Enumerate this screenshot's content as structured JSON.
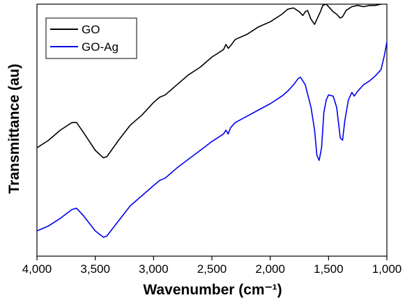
{
  "chart_data": {
    "type": "line",
    "title": "",
    "xlabel": "Wavenumber (cm⁻¹)",
    "ylabel": "Transmittance (au)",
    "xlim": [
      4000,
      1000
    ],
    "x_reversed": true,
    "y_ticks_shown": false,
    "x_ticks": [
      4000,
      3500,
      3000,
      2500,
      2000,
      1500,
      1000
    ],
    "x_tick_labels": [
      "4,000",
      "3,500",
      "3,000",
      "2,500",
      "2,000",
      "1,500",
      "1,000"
    ],
    "ylim": [
      0,
      100
    ],
    "grid": false,
    "legend_position": "top-left",
    "series": [
      {
        "name": "GO",
        "color": "#000000",
        "points": [
          [
            4000,
            43
          ],
          [
            3900,
            46
          ],
          [
            3800,
            50
          ],
          [
            3700,
            53
          ],
          [
            3660,
            53
          ],
          [
            3600,
            49
          ],
          [
            3500,
            42
          ],
          [
            3430,
            39
          ],
          [
            3400,
            39.5
          ],
          [
            3300,
            46
          ],
          [
            3200,
            52
          ],
          [
            3100,
            56
          ],
          [
            3000,
            61
          ],
          [
            2950,
            63
          ],
          [
            2900,
            64
          ],
          [
            2800,
            68
          ],
          [
            2700,
            72
          ],
          [
            2600,
            75
          ],
          [
            2500,
            79
          ],
          [
            2400,
            82
          ],
          [
            2380,
            84
          ],
          [
            2360,
            82.5
          ],
          [
            2340,
            83.5
          ],
          [
            2300,
            86
          ],
          [
            2200,
            88
          ],
          [
            2100,
            91
          ],
          [
            2000,
            93
          ],
          [
            1900,
            96
          ],
          [
            1850,
            98
          ],
          [
            1800,
            98.5
          ],
          [
            1750,
            97
          ],
          [
            1720,
            95.5
          ],
          [
            1700,
            97
          ],
          [
            1680,
            97.5
          ],
          [
            1650,
            94
          ],
          [
            1620,
            92
          ],
          [
            1600,
            94
          ],
          [
            1570,
            97
          ],
          [
            1550,
            99.5
          ],
          [
            1520,
            100
          ],
          [
            1500,
            99
          ],
          [
            1460,
            97
          ],
          [
            1430,
            96
          ],
          [
            1400,
            94.5
          ],
          [
            1380,
            95
          ],
          [
            1350,
            97.5
          ],
          [
            1300,
            99
          ],
          [
            1250,
            99.5
          ],
          [
            1200,
            99
          ],
          [
            1150,
            99.5
          ],
          [
            1100,
            99.5
          ],
          [
            1050,
            100
          ],
          [
            1010,
            101
          ],
          [
            1000,
            103
          ]
        ]
      },
      {
        "name": "GO-Ag",
        "color": "#0000ee",
        "points": [
          [
            4000,
            10
          ],
          [
            3900,
            12
          ],
          [
            3800,
            15
          ],
          [
            3700,
            18.5
          ],
          [
            3660,
            19
          ],
          [
            3600,
            16
          ],
          [
            3500,
            10
          ],
          [
            3430,
            7.5
          ],
          [
            3400,
            8
          ],
          [
            3300,
            14
          ],
          [
            3200,
            20
          ],
          [
            3100,
            24
          ],
          [
            3000,
            28
          ],
          [
            2950,
            30
          ],
          [
            2900,
            31
          ],
          [
            2800,
            35
          ],
          [
            2700,
            38.5
          ],
          [
            2600,
            42
          ],
          [
            2500,
            45.5
          ],
          [
            2400,
            48.5
          ],
          [
            2380,
            50
          ],
          [
            2360,
            48.5
          ],
          [
            2340,
            51
          ],
          [
            2300,
            53
          ],
          [
            2200,
            55.5
          ],
          [
            2100,
            58
          ],
          [
            2000,
            60.5
          ],
          [
            1900,
            63.5
          ],
          [
            1850,
            65.5
          ],
          [
            1800,
            68
          ],
          [
            1760,
            70.5
          ],
          [
            1740,
            71
          ],
          [
            1700,
            68
          ],
          [
            1650,
            59
          ],
          [
            1620,
            50
          ],
          [
            1600,
            40
          ],
          [
            1580,
            38
          ],
          [
            1560,
            43
          ],
          [
            1540,
            57
          ],
          [
            1520,
            62
          ],
          [
            1500,
            64
          ],
          [
            1460,
            63.5
          ],
          [
            1430,
            59
          ],
          [
            1400,
            47
          ],
          [
            1380,
            46
          ],
          [
            1360,
            54
          ],
          [
            1330,
            62
          ],
          [
            1300,
            65
          ],
          [
            1280,
            63.5
          ],
          [
            1250,
            65.5
          ],
          [
            1200,
            68
          ],
          [
            1150,
            69.5
          ],
          [
            1100,
            71.5
          ],
          [
            1050,
            74
          ],
          [
            1020,
            80
          ],
          [
            1000,
            85
          ]
        ]
      }
    ]
  }
}
